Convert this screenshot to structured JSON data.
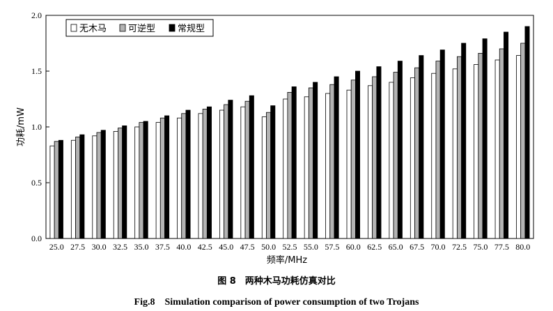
{
  "chart_data": {
    "type": "bar",
    "categories": [
      "25.0",
      "27.5",
      "30.0",
      "32.5",
      "35.0",
      "37.5",
      "40.0",
      "42.5",
      "45.0",
      "47.5",
      "50.0",
      "52.5",
      "55.0",
      "57.5",
      "60.0",
      "62.5",
      "65.0",
      "67.5",
      "70.0",
      "72.5",
      "75.0",
      "77.5",
      "80.0"
    ],
    "series": [
      {
        "name": "无木马",
        "color": "#ffffff",
        "values": [
          0.83,
          0.88,
          0.92,
          0.96,
          1.0,
          1.04,
          1.08,
          1.12,
          1.15,
          1.18,
          1.09,
          1.25,
          1.27,
          1.3,
          1.33,
          1.37,
          1.4,
          1.44,
          1.48,
          1.52,
          1.56,
          1.6,
          1.64
        ]
      },
      {
        "name": "可逆型",
        "color": "#b3b3b3",
        "values": [
          0.87,
          0.91,
          0.95,
          0.99,
          1.04,
          1.08,
          1.12,
          1.16,
          1.2,
          1.23,
          1.13,
          1.31,
          1.35,
          1.38,
          1.42,
          1.45,
          1.49,
          1.53,
          1.59,
          1.63,
          1.66,
          1.7,
          1.75
        ]
      },
      {
        "name": "常规型",
        "color": "#000000",
        "values": [
          0.88,
          0.93,
          0.97,
          1.01,
          1.05,
          1.1,
          1.15,
          1.18,
          1.24,
          1.28,
          1.19,
          1.36,
          1.4,
          1.45,
          1.5,
          1.54,
          1.59,
          1.64,
          1.69,
          1.75,
          1.79,
          1.85,
          1.9
        ]
      }
    ],
    "xlabel": "频率/MHz",
    "ylabel": "功耗/mW",
    "ylim": [
      0,
      2.0
    ],
    "yticks": [
      "0.0",
      "0.5",
      "1.0",
      "1.5",
      "2.0"
    ],
    "legend_position": "top-left",
    "grid": false
  },
  "caption": {
    "cn": "图 8　两种木马功耗仿真对比",
    "en": "Fig.8　Simulation comparison of power consumption of two Trojans"
  }
}
